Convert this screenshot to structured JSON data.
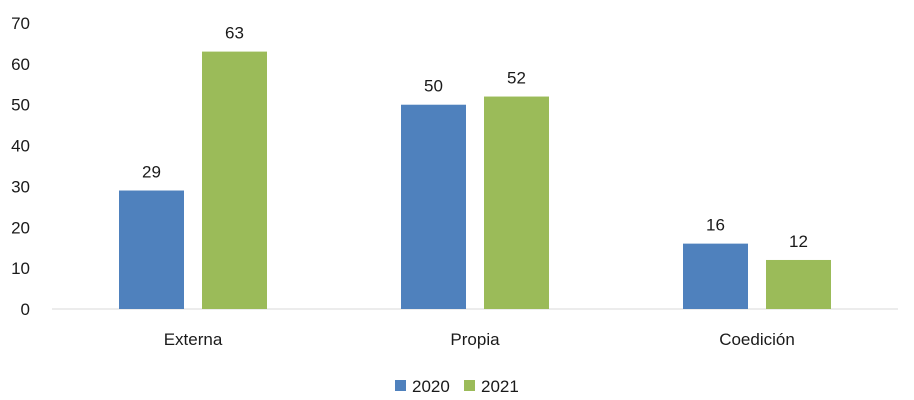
{
  "chart_data": {
    "type": "bar",
    "categories": [
      "Externa",
      "Propia",
      "Coedición"
    ],
    "series": [
      {
        "name": "2020",
        "values": [
          29,
          50,
          16
        ],
        "color": "#4F81BD"
      },
      {
        "name": "2021",
        "values": [
          63,
          52,
          12
        ],
        "color": "#9BBB59"
      }
    ],
    "y_ticks": [
      "0",
      "10",
      "20",
      "30",
      "40",
      "50",
      "60",
      "70"
    ],
    "ylim": [
      0,
      70
    ],
    "grid": false,
    "data_labels": true,
    "legend_position": "bottom"
  }
}
